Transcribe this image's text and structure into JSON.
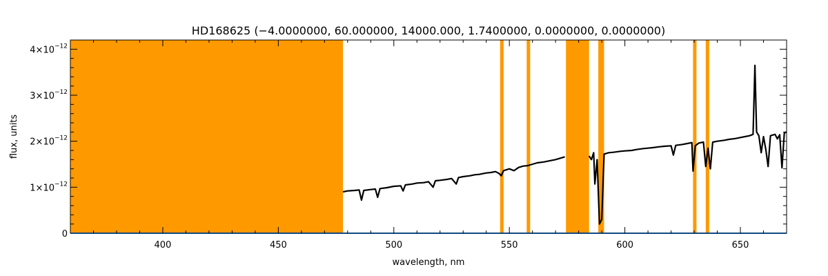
{
  "chart_data": {
    "type": "line",
    "title": "HD168625   (−4.0000000, 60.000000, 14000.000, 1.7400000, 0.0000000, 0.0000000)",
    "xlabel": "wavelength, nm",
    "ylabel": "flux, units",
    "xlim": [
      360,
      670
    ],
    "ylim": [
      0,
      4.2e-12
    ],
    "x_ticks": [
      400,
      450,
      500,
      550,
      600,
      650
    ],
    "y_ticks": [
      {
        "value": 0,
        "mantissa": "0",
        "exponent": ""
      },
      {
        "value": 1e-12,
        "mantissa": "1×10",
        "exponent": "−12"
      },
      {
        "value": 2e-12,
        "mantissa": "2×10",
        "exponent": "−12"
      },
      {
        "value": 3e-12,
        "mantissa": "3×10",
        "exponent": "−12"
      },
      {
        "value": 4e-12,
        "mantissa": "4×10",
        "exponent": "−12"
      }
    ],
    "masked_regions": [
      [
        360,
        478
      ],
      [
        546,
        547.5
      ],
      [
        557.5,
        559
      ],
      [
        574.5,
        584.5
      ],
      [
        588.5,
        591
      ],
      [
        629.5,
        631
      ],
      [
        635,
        636.5
      ]
    ],
    "series": [
      {
        "color": "#000000",
        "segments": [
          [
            [
              478,
              9e-13
            ],
            [
              480,
              9.2e-13
            ],
            [
              483,
              9.3e-13
            ],
            [
              485,
              9.4e-13
            ],
            [
              486,
              7.2e-13
            ],
            [
              487,
              9.3e-13
            ],
            [
              490,
              9.5e-13
            ],
            [
              492,
              9.6e-13
            ],
            [
              493,
              7.8e-13
            ],
            [
              494,
              9.7e-13
            ],
            [
              497,
              9.9e-13
            ],
            [
              500,
              1.02e-12
            ],
            [
              503,
              1.03e-12
            ],
            [
              504,
              9.2e-13
            ],
            [
              505,
              1.05e-12
            ],
            [
              508,
              1.07e-12
            ],
            [
              510,
              1.09e-12
            ],
            [
              513,
              1.1e-12
            ],
            [
              515,
              1.12e-12
            ],
            [
              517,
              1e-12
            ],
            [
              518,
              1.14e-12
            ],
            [
              520,
              1.15e-12
            ],
            [
              523,
              1.17e-12
            ],
            [
              525,
              1.19e-12
            ],
            [
              527,
              1.07e-12
            ],
            [
              528,
              1.21e-12
            ],
            [
              530,
              1.23e-12
            ],
            [
              533,
              1.25e-12
            ],
            [
              535,
              1.27e-12
            ],
            [
              537,
              1.28e-12
            ],
            [
              540,
              1.31e-12
            ],
            [
              542,
              1.32e-12
            ],
            [
              544,
              1.34e-12
            ],
            [
              545.5,
              1.3e-12
            ],
            [
              546.5,
              1.25e-12
            ],
            [
              547.5,
              1.36e-12
            ],
            [
              550,
              1.4e-12
            ],
            [
              552,
              1.36e-12
            ],
            [
              554,
              1.43e-12
            ],
            [
              556,
              1.46e-12
            ],
            [
              558,
              1.47e-12
            ],
            [
              560,
              1.5e-12
            ],
            [
              562,
              1.53e-12
            ],
            [
              565,
              1.55e-12
            ],
            [
              567,
              1.57e-12
            ],
            [
              570,
              1.6e-12
            ],
            [
              572,
              1.63e-12
            ],
            [
              574,
              1.66e-12
            ]
          ],
          [
            [
              584.5,
              1.68e-12
            ],
            [
              585.5,
              1.6e-12
            ],
            [
              586.5,
              1.75e-12
            ],
            [
              587,
              1.07e-12
            ],
            [
              588,
              1.6e-12
            ],
            [
              589,
              2e-13
            ],
            [
              590,
              3e-13
            ],
            [
              591,
              1.72e-12
            ],
            [
              593,
              1.75e-12
            ],
            [
              595,
              1.76e-12
            ],
            [
              598,
              1.78e-12
            ],
            [
              600,
              1.79e-12
            ],
            [
              603,
              1.8e-12
            ],
            [
              605,
              1.82e-12
            ],
            [
              608,
              1.84e-12
            ],
            [
              610,
              1.85e-12
            ],
            [
              612,
              1.86e-12
            ],
            [
              615,
              1.88e-12
            ],
            [
              617,
              1.89e-12
            ],
            [
              620,
              1.9e-12
            ],
            [
              621,
              1.7e-12
            ],
            [
              622,
              1.91e-12
            ],
            [
              625,
              1.93e-12
            ],
            [
              627,
              1.95e-12
            ],
            [
              629,
              1.97e-12
            ],
            [
              629.5,
              1.35e-12
            ],
            [
              630.5,
              1.9e-12
            ],
            [
              632,
              1.96e-12
            ],
            [
              634,
              1.98e-12
            ],
            [
              635,
              1.45e-12
            ],
            [
              636,
              1.85e-12
            ],
            [
              637,
              1.4e-12
            ],
            [
              638,
              1.98e-12
            ],
            [
              640,
              2e-12
            ],
            [
              643,
              2.02e-12
            ],
            [
              645,
              2.04e-12
            ],
            [
              648,
              2.06e-12
            ],
            [
              650,
              2.08e-12
            ],
            [
              652,
              2.1e-12
            ],
            [
              654,
              2.12e-12
            ],
            [
              655.5,
              2.15e-12
            ],
            [
              656.3,
              3.65e-12
            ],
            [
              657,
              2.2e-12
            ],
            [
              658,
              2.12e-12
            ],
            [
              659,
              1.75e-12
            ],
            [
              660,
              2.1e-12
            ],
            [
              661,
              1.82e-12
            ],
            [
              662,
              1.45e-12
            ],
            [
              663,
              2.12e-12
            ],
            [
              665,
              2.15e-12
            ],
            [
              666,
              2.05e-12
            ],
            [
              667,
              2.14e-12
            ],
            [
              668,
              1.42e-12
            ],
            [
              669,
              2.18e-12
            ],
            [
              670,
              2.2e-12
            ]
          ]
        ]
      },
      {
        "color": "#1e90ff",
        "segments": [
          [
            [
              360,
              0
            ],
            [
              670,
              0
            ]
          ]
        ]
      }
    ],
    "grid": false,
    "legend": "none",
    "colors": {
      "mask": "#ff9900",
      "axis": "#000000"
    }
  }
}
